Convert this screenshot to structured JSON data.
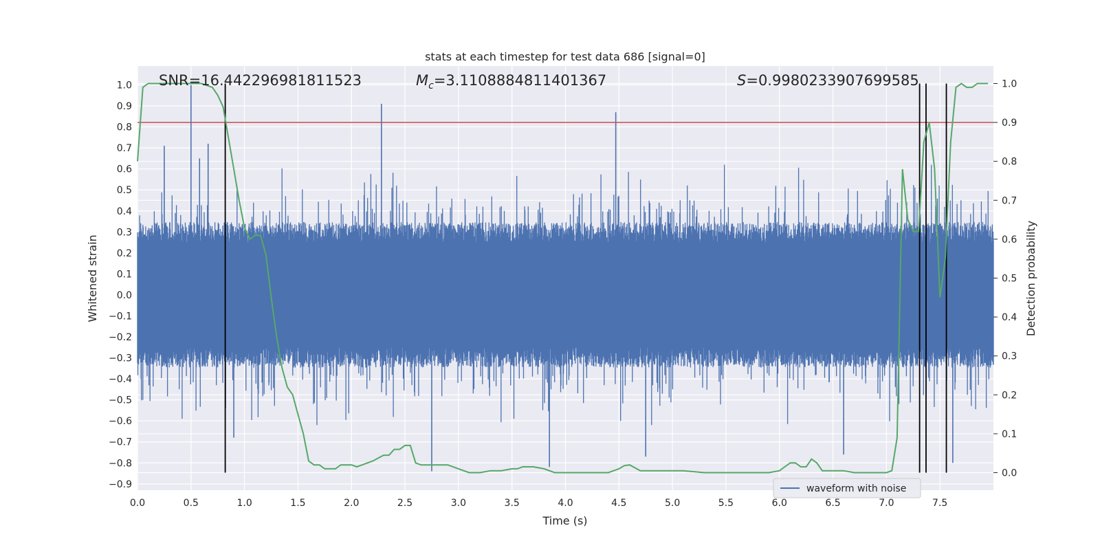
{
  "chart_data": {
    "type": "line",
    "title": "stats at each timestep for test data 686 [signal=0]",
    "xlabel": "Time (s)",
    "ylabel": "Whitened strain",
    "y2label": "Detection probability",
    "xlim": [
      0.0,
      8.0
    ],
    "ylim": [
      -0.93,
      1.09
    ],
    "y2lim": [
      -0.045,
      1.045
    ],
    "x_ticks": [
      "0.0",
      "0.5",
      "1.0",
      "1.5",
      "2.0",
      "2.5",
      "3.0",
      "3.5",
      "4.0",
      "4.5",
      "5.0",
      "5.5",
      "6.0",
      "6.5",
      "7.0",
      "7.5"
    ],
    "y_ticks": [
      "1.0",
      "0.9",
      "0.8",
      "0.7",
      "0.6",
      "0.5",
      "0.4",
      "0.3",
      "0.2",
      "0.1",
      "0.0",
      "-0.1",
      "-0.2",
      "-0.3",
      "-0.4",
      "-0.5",
      "-0.6",
      "-0.7",
      "-0.8",
      "-0.9"
    ],
    "y2_ticks": [
      "1.0",
      "0.9",
      "0.8",
      "0.7",
      "0.6",
      "0.5",
      "0.4",
      "0.3",
      "0.2",
      "0.1",
      "0.0"
    ],
    "grid": true,
    "legend_position": "bottom-right",
    "annotations": {
      "snr": "SNR=16.442296981811523",
      "mc_symbol": "M",
      "mc_sub": "c",
      "mc_value": "=3.1108884811401367",
      "s_symbol": "S",
      "s_value": "=0.9980233907699585"
    },
    "threshold": {
      "y2": 0.9,
      "color": "#c44e52"
    },
    "vertical_lines_x": [
      0.82,
      7.31,
      7.37,
      7.56
    ],
    "vertical_lines_y2_range": [
      0.0,
      1.0
    ],
    "series": [
      {
        "name": "waveform with noise",
        "color": "#4c72b0",
        "axis": "left",
        "envelope_typical": 0.33,
        "notable_spikes": [
          {
            "x": 0.5,
            "y": 1.0
          },
          {
            "x": 0.66,
            "y": 0.72
          },
          {
            "x": 2.28,
            "y": 0.91
          },
          {
            "x": 4.47,
            "y": 0.87
          },
          {
            "x": 2.75,
            "y": -0.84
          },
          {
            "x": 3.85,
            "y": -0.82
          },
          {
            "x": 0.9,
            "y": -0.68
          },
          {
            "x": 7.62,
            "y": -0.8
          },
          {
            "x": 6.6,
            "y": -0.76
          },
          {
            "x": 4.75,
            "y": -0.77
          },
          {
            "x": 0.25,
            "y": 0.71
          },
          {
            "x": 0.58,
            "y": 0.65
          }
        ]
      },
      {
        "name": "",
        "color": "#55a868",
        "axis": "right",
        "x": [
          0.0,
          0.05,
          0.1,
          0.2,
          0.3,
          0.4,
          0.5,
          0.6,
          0.7,
          0.75,
          0.8,
          0.85,
          0.9,
          0.95,
          1.0,
          1.05,
          1.1,
          1.15,
          1.2,
          1.25,
          1.3,
          1.35,
          1.4,
          1.45,
          1.5,
          1.55,
          1.6,
          1.65,
          1.7,
          1.75,
          1.8,
          1.85,
          1.9,
          1.95,
          2.0,
          2.05,
          2.1,
          2.2,
          2.3,
          2.35,
          2.4,
          2.45,
          2.5,
          2.55,
          2.6,
          2.65,
          2.7,
          2.75,
          2.9,
          3.0,
          3.1,
          3.2,
          3.3,
          3.4,
          3.5,
          3.55,
          3.6,
          3.65,
          3.7,
          3.8,
          3.9,
          4.0,
          4.2,
          4.4,
          4.5,
          4.55,
          4.6,
          4.7,
          4.9,
          5.1,
          5.3,
          5.5,
          5.7,
          5.9,
          6.0,
          6.05,
          6.1,
          6.15,
          6.2,
          6.25,
          6.3,
          6.35,
          6.4,
          6.5,
          6.6,
          6.7,
          6.8,
          6.9,
          7.0,
          7.05,
          7.1,
          7.15,
          7.2,
          7.25,
          7.3,
          7.35,
          7.4,
          7.45,
          7.5,
          7.55,
          7.6,
          7.65,
          7.7,
          7.75,
          7.8,
          7.85,
          7.9,
          7.95
        ],
        "values": [
          0.8,
          0.99,
          1.0,
          1.0,
          1.0,
          1.0,
          1.0,
          1.0,
          0.99,
          0.97,
          0.94,
          0.86,
          0.78,
          0.7,
          0.63,
          0.6,
          0.61,
          0.61,
          0.56,
          0.45,
          0.35,
          0.27,
          0.22,
          0.2,
          0.15,
          0.1,
          0.03,
          0.02,
          0.02,
          0.01,
          0.01,
          0.01,
          0.02,
          0.02,
          0.02,
          0.015,
          0.02,
          0.03,
          0.045,
          0.045,
          0.06,
          0.06,
          0.07,
          0.07,
          0.025,
          0.02,
          0.02,
          0.02,
          0.02,
          0.01,
          0.0,
          0.0,
          0.005,
          0.005,
          0.01,
          0.01,
          0.015,
          0.015,
          0.015,
          0.01,
          0.0,
          0.0,
          0.0,
          0.0,
          0.01,
          0.018,
          0.02,
          0.005,
          0.005,
          0.005,
          0.0,
          0.0,
          0.0,
          0.0,
          0.005,
          0.015,
          0.025,
          0.025,
          0.015,
          0.015,
          0.035,
          0.025,
          0.005,
          0.005,
          0.005,
          0.0,
          0.0,
          0.0,
          0.0,
          0.005,
          0.09,
          0.78,
          0.65,
          0.62,
          0.62,
          0.85,
          0.9,
          0.78,
          0.45,
          0.55,
          0.85,
          0.99,
          1.0,
          0.99,
          0.99,
          1.0,
          1.0,
          1.0
        ]
      }
    ]
  }
}
